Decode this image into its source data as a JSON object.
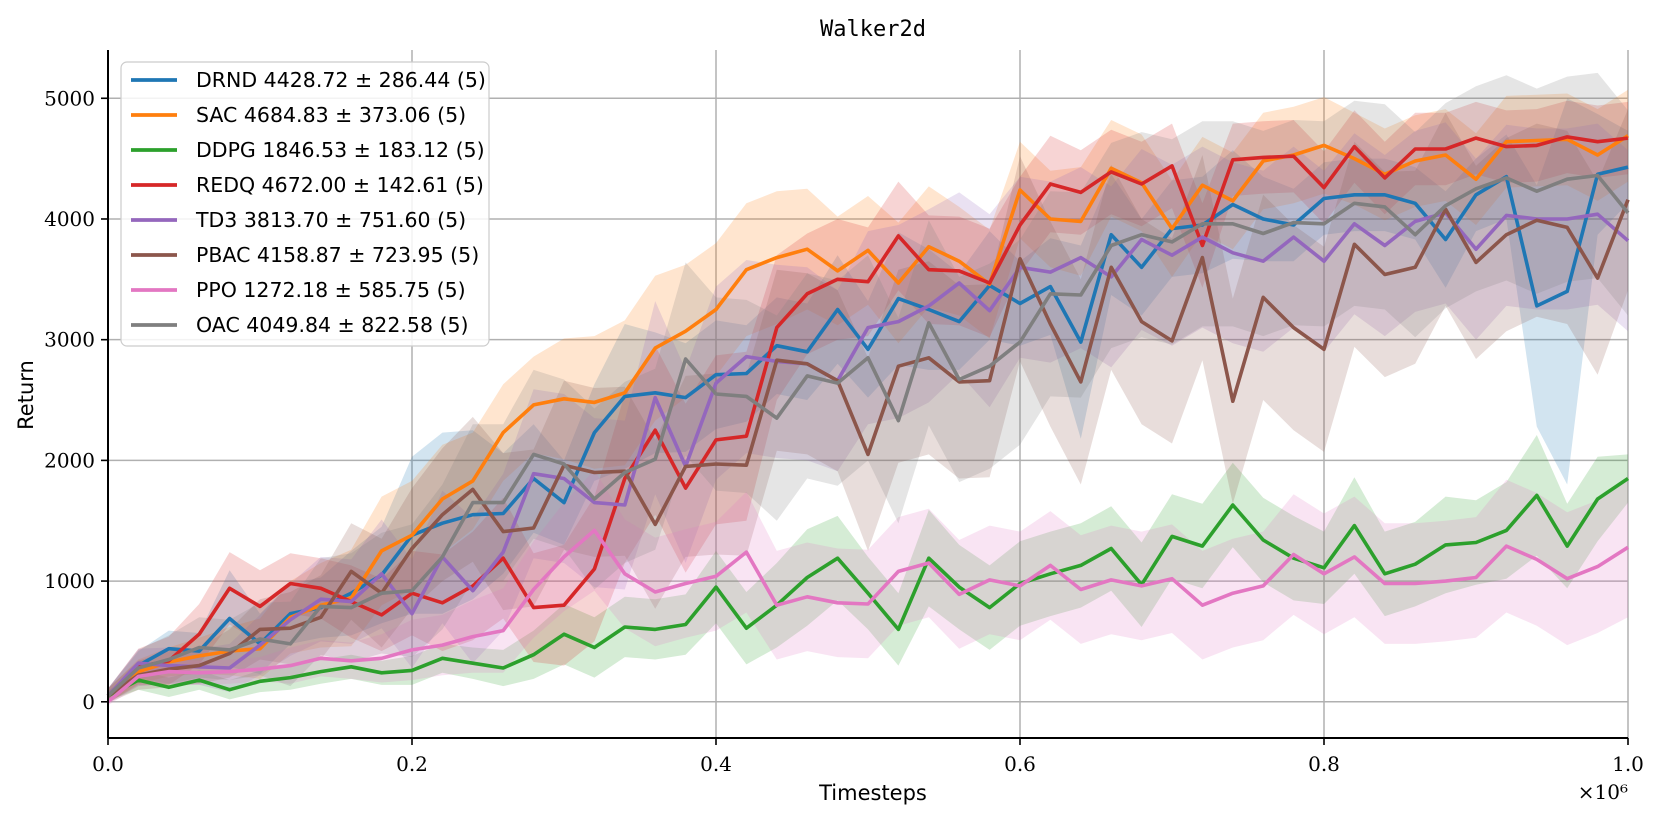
{
  "chart_data": {
    "type": "line",
    "title": "Walker2d",
    "xlabel": "Timesteps",
    "ylabel": "Return",
    "x_multiplier": "×10⁶",
    "xlim": [
      0,
      1.0
    ],
    "ylim": [
      -300,
      5400
    ],
    "xticks": [
      0.0,
      0.2,
      0.4,
      0.6,
      0.8,
      1.0
    ],
    "xtick_labels": [
      "0.0",
      "0.2",
      "0.4",
      "0.6",
      "0.8",
      "1.0"
    ],
    "yticks": [
      0,
      1000,
      2000,
      3000,
      4000,
      5000
    ],
    "ytick_labels": [
      "0",
      "1000",
      "2000",
      "3000",
      "4000",
      "5000"
    ],
    "grid": true,
    "legend_position": "top-left",
    "x": [
      0,
      0.02,
      0.04,
      0.06,
      0.08,
      0.1,
      0.12,
      0.14,
      0.16,
      0.18,
      0.2,
      0.22,
      0.24,
      0.26,
      0.28,
      0.3,
      0.32,
      0.34,
      0.36,
      0.38,
      0.4,
      0.42,
      0.44,
      0.46,
      0.48,
      0.5,
      0.52,
      0.54,
      0.56,
      0.58,
      0.6,
      0.62,
      0.64,
      0.66,
      0.68,
      0.7,
      0.72,
      0.74,
      0.76,
      0.78,
      0.8,
      0.82,
      0.84,
      0.86,
      0.88,
      0.9,
      0.92,
      0.94,
      0.96,
      0.98,
      1.0
    ],
    "series": [
      {
        "name": "DRND",
        "label": "DRND 4428.72 ± 286.44 (5)",
        "color": "#1f77b4",
        "values": [
          50,
          300,
          440,
          420,
          690,
          480,
          730,
          780,
          900,
          1050,
          1380,
          1480,
          1550,
          1560,
          1850,
          1650,
          2230,
          2530,
          2560,
          2520,
          2710,
          2720,
          2950,
          2900,
          3250,
          2920,
          3340,
          3250,
          3150,
          3450,
          3300,
          3440,
          2980,
          3870,
          3600,
          3920,
          3950,
          4120,
          4000,
          3950,
          4170,
          4200,
          4200,
          4130,
          3830,
          4200,
          4350,
          3280,
          3400,
          4370,
          4430
        ],
        "spread": [
          60,
          120,
          150,
          150,
          400,
          250,
          250,
          250,
          350,
          400,
          650,
          750,
          700,
          500,
          450,
          350,
          400,
          600,
          500,
          450,
          450,
          400,
          400,
          400,
          450,
          400,
          550,
          500,
          400,
          450,
          350,
          400,
          800,
          500,
          400,
          400,
          400,
          450,
          350,
          300,
          300,
          300,
          300,
          300,
          400,
          300,
          350,
          1000,
          1600,
          500,
          300
        ]
      },
      {
        "name": "SAC",
        "label": "SAC 4684.83 ± 373.06 (5)",
        "color": "#ff7f0e",
        "values": [
          50,
          250,
          330,
          380,
          420,
          440,
          700,
          800,
          860,
          1250,
          1380,
          1680,
          1830,
          2230,
          2460,
          2510,
          2480,
          2560,
          2930,
          3070,
          3250,
          3580,
          3680,
          3750,
          3570,
          3740,
          3470,
          3770,
          3650,
          3460,
          4240,
          4000,
          3980,
          4420,
          4300,
          3920,
          4280,
          4150,
          4480,
          4530,
          4610,
          4500,
          4370,
          4480,
          4530,
          4330,
          4640,
          4650,
          4660,
          4530,
          4690
        ],
        "spread": [
          60,
          100,
          120,
          150,
          200,
          250,
          300,
          350,
          400,
          450,
          450,
          450,
          400,
          400,
          400,
          500,
          550,
          600,
          600,
          550,
          550,
          550,
          550,
          500,
          450,
          450,
          500,
          500,
          450,
          450,
          400,
          400,
          450,
          400,
          400,
          400,
          400,
          400,
          400,
          400,
          400,
          380,
          380,
          380,
          380,
          380,
          380,
          380,
          380,
          380,
          380
        ]
      },
      {
        "name": "DDPG",
        "label": "DDPG 1846.53 ± 183.12 (5)",
        "color": "#2ca02c",
        "values": [
          50,
          180,
          120,
          180,
          100,
          170,
          200,
          250,
          290,
          240,
          260,
          360,
          320,
          280,
          390,
          560,
          450,
          620,
          600,
          640,
          950,
          610,
          800,
          1030,
          1190,
          900,
          600,
          1190,
          950,
          780,
          980,
          1060,
          1130,
          1270,
          970,
          1370,
          1290,
          1630,
          1340,
          1190,
          1110,
          1460,
          1060,
          1140,
          1300,
          1320,
          1420,
          1710,
          1290,
          1680,
          1850
        ],
        "spread": [
          40,
          80,
          80,
          80,
          80,
          90,
          100,
          100,
          100,
          100,
          120,
          120,
          130,
          150,
          200,
          250,
          250,
          250,
          250,
          250,
          300,
          300,
          350,
          400,
          350,
          300,
          300,
          400,
          350,
          350,
          350,
          350,
          350,
          350,
          350,
          350,
          350,
          350,
          350,
          350,
          300,
          400,
          350,
          350,
          400,
          350,
          400,
          500,
          350,
          350,
          200
        ]
      },
      {
        "name": "REDQ",
        "label": "REDQ 4672.00 ± 142.61 (5)",
        "color": "#d62728",
        "values": [
          50,
          290,
          340,
          560,
          940,
          790,
          980,
          940,
          830,
          720,
          900,
          820,
          960,
          1190,
          780,
          800,
          1100,
          1850,
          2250,
          1770,
          2170,
          2200,
          3100,
          3380,
          3500,
          3480,
          3860,
          3580,
          3570,
          3470,
          3950,
          4290,
          4220,
          4390,
          4290,
          4440,
          3780,
          4490,
          4510,
          4520,
          4260,
          4600,
          4340,
          4580,
          4580,
          4670,
          4600,
          4610,
          4680,
          4640,
          4670
        ],
        "spread": [
          60,
          150,
          200,
          250,
          300,
          300,
          250,
          250,
          300,
          300,
          350,
          400,
          450,
          500,
          450,
          500,
          600,
          700,
          700,
          700,
          700,
          700,
          600,
          500,
          500,
          450,
          450,
          450,
          450,
          450,
          400,
          400,
          350,
          350,
          350,
          350,
          350,
          300,
          300,
          300,
          300,
          300,
          300,
          300,
          300,
          300,
          300,
          300,
          300,
          300,
          300
        ]
      },
      {
        "name": "TD3",
        "label": "TD3 3813.70 ± 751.60 (5)",
        "color": "#9467bd",
        "values": [
          50,
          320,
          300,
          290,
          280,
          470,
          680,
          850,
          830,
          1060,
          730,
          1200,
          920,
          1240,
          1890,
          1850,
          1650,
          1630,
          2520,
          1950,
          2640,
          2860,
          2820,
          2800,
          2660,
          3100,
          3150,
          3280,
          3470,
          3240,
          3600,
          3560,
          3680,
          3520,
          3830,
          3700,
          3850,
          3720,
          3650,
          3850,
          3650,
          3960,
          3780,
          3980,
          4050,
          3750,
          4030,
          4000,
          4000,
          4040,
          3820
        ],
        "spread": [
          60,
          120,
          150,
          150,
          200,
          250,
          300,
          350,
          350,
          450,
          450,
          550,
          600,
          650,
          700,
          700,
          700,
          700,
          800,
          800,
          800,
          800,
          800,
          800,
          750,
          800,
          800,
          800,
          750,
          800,
          750,
          750,
          750,
          750,
          750,
          750,
          750,
          750,
          750,
          750,
          750,
          750,
          750,
          750,
          750,
          750,
          750,
          750,
          750,
          750,
          750
        ]
      },
      {
        "name": "PBAC",
        "label": "PBAC 4158.87 ± 723.95 (5)",
        "color": "#8c564b",
        "values": [
          50,
          220,
          270,
          300,
          400,
          600,
          610,
          700,
          1080,
          900,
          1270,
          1550,
          1760,
          1410,
          1440,
          1960,
          1900,
          1910,
          1470,
          1950,
          1970,
          1960,
          2830,
          2800,
          2660,
          2050,
          2780,
          2850,
          2650,
          2660,
          3670,
          3130,
          2650,
          3600,
          3150,
          2990,
          3680,
          2490,
          3350,
          3100,
          2920,
          3790,
          3540,
          3600,
          4080,
          3640,
          3870,
          3990,
          3930,
          3510,
          4160
        ],
        "spread": [
          60,
          120,
          150,
          150,
          200,
          250,
          300,
          350,
          400,
          450,
          500,
          550,
          600,
          650,
          650,
          700,
          700,
          700,
          700,
          750,
          750,
          750,
          750,
          750,
          750,
          800,
          800,
          800,
          800,
          800,
          850,
          850,
          850,
          850,
          850,
          850,
          850,
          850,
          850,
          850,
          850,
          850,
          850,
          800,
          800,
          800,
          800,
          800,
          800,
          800,
          750
        ]
      },
      {
        "name": "PPO",
        "label": "PPO 1272.18 ± 585.75 (5)",
        "color": "#e377c2",
        "values": [
          0,
          210,
          250,
          240,
          250,
          270,
          300,
          360,
          340,
          360,
          430,
          470,
          540,
          590,
          930,
          1200,
          1420,
          1060,
          910,
          980,
          1040,
          1240,
          800,
          870,
          820,
          810,
          1080,
          1150,
          890,
          1010,
          960,
          1130,
          930,
          1010,
          960,
          1020,
          800,
          900,
          960,
          1220,
          1060,
          1200,
          980,
          980,
          1000,
          1030,
          1290,
          1180,
          1020,
          1120,
          1280
        ],
        "spread": [
          30,
          80,
          100,
          100,
          100,
          100,
          150,
          150,
          150,
          200,
          250,
          250,
          300,
          350,
          400,
          450,
          500,
          450,
          450,
          450,
          450,
          500,
          450,
          450,
          450,
          450,
          450,
          450,
          450,
          450,
          450,
          450,
          450,
          450,
          450,
          450,
          450,
          450,
          450,
          500,
          500,
          500,
          500,
          500,
          500,
          500,
          550,
          550,
          550,
          550,
          580
        ]
      },
      {
        "name": "OAC",
        "label": "OAC 4049.84 ± 822.58 (5)",
        "color": "#7f7f7f",
        "values": [
          50,
          280,
          350,
          450,
          430,
          520,
          480,
          790,
          780,
          900,
          920,
          1200,
          1650,
          1650,
          2050,
          1970,
          1680,
          1900,
          2010,
          2840,
          2550,
          2530,
          2350,
          2700,
          2640,
          2850,
          2330,
          3140,
          2670,
          2780,
          2980,
          3380,
          3370,
          3780,
          3870,
          3810,
          3960,
          3960,
          3880,
          3970,
          3960,
          4130,
          4100,
          3870,
          4110,
          4250,
          4340,
          4230,
          4330,
          4360,
          4050
        ],
        "spread": [
          60,
          150,
          200,
          250,
          250,
          300,
          350,
          400,
          450,
          500,
          550,
          600,
          650,
          650,
          700,
          700,
          750,
          750,
          750,
          800,
          800,
          800,
          850,
          850,
          850,
          850,
          850,
          850,
          850,
          850,
          850,
          850,
          850,
          850,
          850,
          850,
          850,
          850,
          850,
          850,
          850,
          850,
          850,
          850,
          850,
          850,
          850,
          850,
          850,
          850,
          850
        ]
      }
    ]
  }
}
